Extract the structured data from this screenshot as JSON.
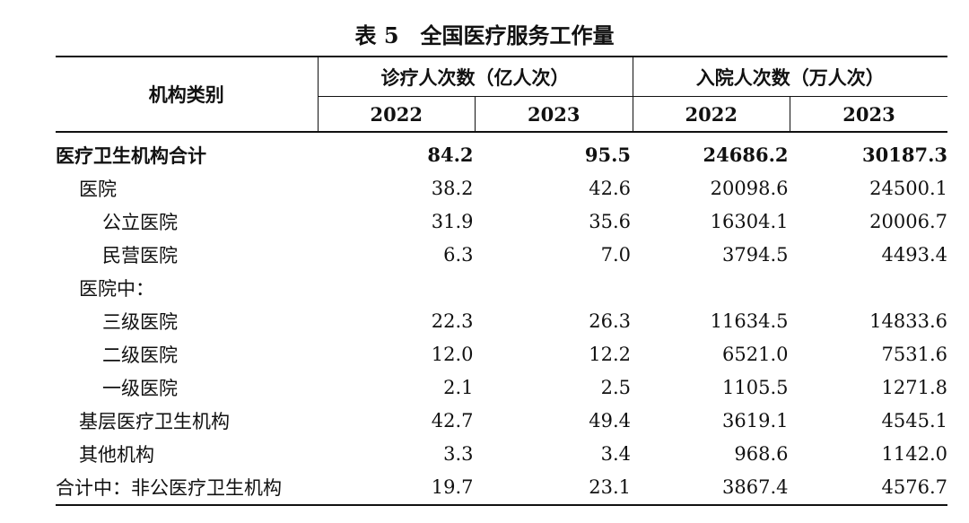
{
  "title": "表 5　全国医疗服务工作量",
  "header": {
    "category_label": "机构类别",
    "groups": [
      {
        "label": "诊疗人次数（亿人次）",
        "years": [
          "2022",
          "2023"
        ]
      },
      {
        "label": "入院人次数（万人次）",
        "years": [
          "2022",
          "2023"
        ]
      }
    ]
  },
  "rows": [
    {
      "name": "医疗卫生机构合计",
      "values": [
        "84.2",
        "95.5",
        "24686.2",
        "30187.3"
      ]
    },
    {
      "name": "医院",
      "values": [
        "38.2",
        "42.6",
        "20098.6",
        "24500.1"
      ]
    },
    {
      "name": "公立医院",
      "values": [
        "31.9",
        "35.6",
        "16304.1",
        "20006.7"
      ]
    },
    {
      "name": "民营医院",
      "values": [
        "6.3",
        "7.0",
        "3794.5",
        "4493.4"
      ]
    },
    {
      "name": "医院中：",
      "values": [
        "",
        "",
        "",
        ""
      ]
    },
    {
      "name": "三级医院",
      "values": [
        "22.3",
        "26.3",
        "11634.5",
        "14833.6"
      ]
    },
    {
      "name": "二级医院",
      "values": [
        "12.0",
        "12.2",
        "6521.0",
        "7531.6"
      ]
    },
    {
      "name": "一级医院",
      "values": [
        "2.1",
        "2.5",
        "1105.5",
        "1271.8"
      ]
    },
    {
      "name": "基层医疗卫生机构",
      "values": [
        "42.7",
        "49.4",
        "3619.1",
        "4545.1"
      ]
    },
    {
      "name": "其他机构",
      "values": [
        "3.3",
        "3.4",
        "968.6",
        "1142.0"
      ]
    },
    {
      "name": "合计中：非公医疗卫生机构",
      "values": [
        "19.7",
        "23.1",
        "3867.4",
        "4576.7"
      ]
    }
  ]
}
